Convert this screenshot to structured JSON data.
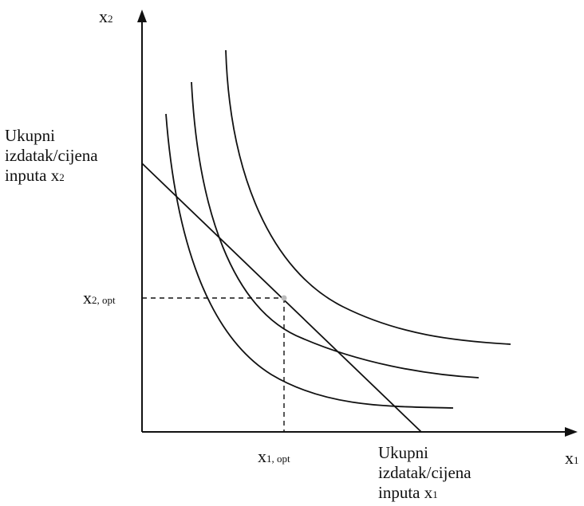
{
  "diagram": {
    "y_axis_label": {
      "main": "x",
      "sub": "2"
    },
    "x_axis_label": {
      "main": "x",
      "sub": "1"
    },
    "y_intercept_label": {
      "line1": "Ukupni",
      "line2": "izdatak/cijena",
      "line3_main": "inputa x",
      "line3_sub": "2"
    },
    "x_intercept_label": {
      "line1": "Ukupni",
      "line2": "izdatak/cijena",
      "line3_main": "inputa x",
      "line3_sub": "1"
    },
    "x2_opt_label": {
      "main": "x",
      "sub": "2, opt"
    },
    "x1_opt_label": {
      "main": "x",
      "sub": "1, opt"
    },
    "isoquant_count": 3,
    "colors": {
      "line": "#111111",
      "optimum_point": "#bbbbbb",
      "background": "#ffffff"
    }
  }
}
